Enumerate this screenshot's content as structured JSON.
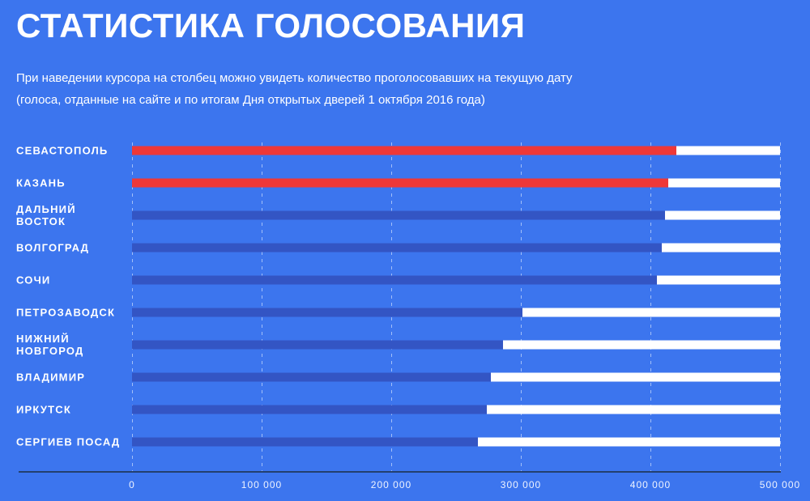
{
  "page": {
    "title": "СТАТИСТИКА ГОЛОСОВАНИЯ",
    "subtitle_line1": "При наведении курсора на столбец можно увидеть количество проголосовавших на текущую дату",
    "subtitle_line2": "(голоса, отданные на сайте и по итогам Дня открытых дверей 1 октября 2016 года)"
  },
  "colors": {
    "background": "#3c75ee",
    "bar_highlight_red": "#ee3838",
    "bar_normal_blue": "#3355c4",
    "bar_remainder_white": "#ffffff",
    "gridline_dashed": "#c5d8fc",
    "axis_line_navy": "#24406e",
    "text_white": "#ffffff"
  },
  "chart_data": {
    "type": "bar",
    "orientation": "horizontal",
    "title": "СТАТИСТИКА ГОЛОСОВАНИЯ",
    "xlabel": "",
    "ylabel": "",
    "xlim": [
      0,
      500000
    ],
    "x_ticks": [
      0,
      100000,
      200000,
      300000,
      400000,
      500000
    ],
    "x_tick_labels": [
      "0",
      "100 000",
      "200 000",
      "300 000",
      "400 000",
      "500 000"
    ],
    "grid": "vertical-dashed",
    "legend": "none",
    "categories": [
      "СЕВАСТОПОЛЬ",
      "КАЗАНЬ",
      "ДАЛЬНИЙ ВОСТОК",
      "ВОЛГОГРАД",
      "СОЧИ",
      "ПЕТРОЗАВОДСК",
      "НИЖНИЙ НОВГОРОД",
      "ВЛАДИМИР",
      "ИРКУТСК",
      "СЕРГИЕВ ПОСАД"
    ],
    "values": [
      420000,
      414000,
      411000,
      409000,
      405000,
      301000,
      286000,
      277000,
      274000,
      267000
    ],
    "highlighted": [
      true,
      true,
      false,
      false,
      false,
      false,
      false,
      false,
      false,
      false
    ],
    "remainder_to": 500000
  }
}
